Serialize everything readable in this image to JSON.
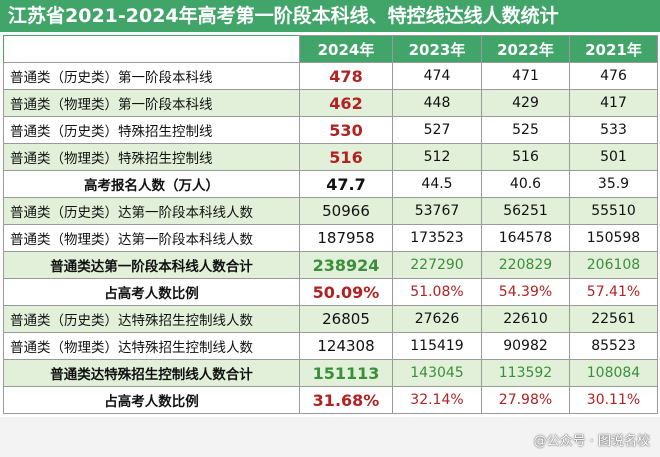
{
  "title": "江苏省2021-2024年高考第一阶段本科线、特控线达线人数统计",
  "columns": [
    "2024年",
    "2023年",
    "2022年",
    "2021年"
  ],
  "rows": [
    {
      "label": "普通类（历史类）第一阶段本科线",
      "v2024": "478",
      "v2023": "474",
      "v2022": "471",
      "v2021": "476"
    },
    {
      "label": "普通类（物理类）第一阶段本科线",
      "v2024": "462",
      "v2023": "448",
      "v2022": "429",
      "v2021": "417"
    },
    {
      "label": "普通类（历史类）特殊招生控制线",
      "v2024": "530",
      "v2023": "527",
      "v2022": "525",
      "v2021": "533"
    },
    {
      "label": "普通类（物理类）特殊招生控制线",
      "v2024": "516",
      "v2023": "512",
      "v2022": "516",
      "v2021": "501"
    },
    {
      "label": "高考报名人数（万人）",
      "v2024": "47.7",
      "v2023": "44.5",
      "v2022": "40.6",
      "v2021": "35.9"
    },
    {
      "label": "普通类（历史类）达第一阶段本科线人数",
      "v2024": "50966",
      "v2023": "53767",
      "v2022": "56251",
      "v2021": "55510"
    },
    {
      "label": "普通类（物理类）达第一阶段本科线人数",
      "v2024": "187958",
      "v2023": "173523",
      "v2022": "164578",
      "v2021": "150598"
    },
    {
      "label": "普通类达第一阶段本科线人数合计",
      "v2024": "238924",
      "v2023": "227290",
      "v2022": "220829",
      "v2021": "206108"
    },
    {
      "label": "占高考人数比例",
      "v2024": "50.09%",
      "v2023": "51.08%",
      "v2022": "54.39%",
      "v2021": "57.41%"
    },
    {
      "label": "普通类（历史类）达特殊招生控制线人数",
      "v2024": "26805",
      "v2023": "27626",
      "v2022": "22610",
      "v2021": "22561"
    },
    {
      "label": "普通类（物理类）达特殊招生控制线人数",
      "v2024": "124308",
      "v2023": "115419",
      "v2022": "90982",
      "v2021": "85523"
    },
    {
      "label": "普通类达特殊招生控制线人数合计",
      "v2024": "151113",
      "v2023": "143045",
      "v2022": "113592",
      "v2021": "108084"
    },
    {
      "label": "占高考人数比例",
      "v2024": "31.68%",
      "v2023": "32.14%",
      "v2022": "27.98%",
      "v2021": "30.11%"
    }
  ],
  "watermark": "@公众号 · 图说名校",
  "colors": {
    "header_green": "#41a56a",
    "row_shade": "#e2f0d9",
    "highlight_red": "#b22222",
    "highlight_green": "#3a8f3a"
  }
}
